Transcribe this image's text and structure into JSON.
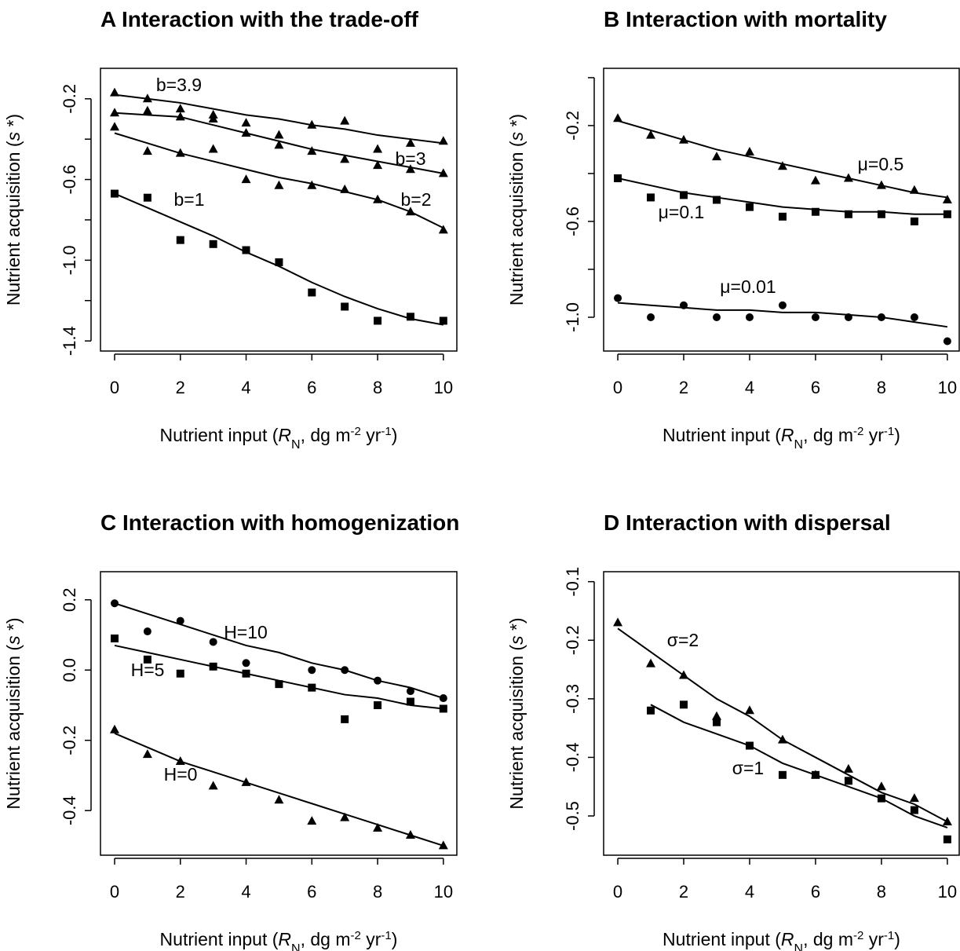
{
  "chart_data": [
    {
      "type": "scatter",
      "title": "A Interaction with the trade-off",
      "x": [
        0,
        1,
        2,
        3,
        4,
        5,
        6,
        7,
        8,
        9,
        10
      ],
      "xlim": [
        -0.43,
        10.41
      ],
      "xticks": [
        0,
        2,
        4,
        6,
        8,
        10
      ],
      "ylim": [
        -1.45,
        -0.049
      ],
      "yticks": [
        -1.4,
        {
          "value": -1,
          "label": "-1.0"
        },
        -0.6,
        -0.2
      ],
      "yminor_ticks": [
        -1.2,
        -0.8,
        -0.4
      ],
      "x_label": [
        "Nutrient input (",
        "R",
        "N",
        ", dg m",
        "-2",
        " yr",
        "-1",
        ")"
      ],
      "y_label": [
        "Nutrient acquisition (",
        "s",
        " *)"
      ],
      "series": [
        {
          "name": "b=3.9",
          "marker": "triangle",
          "color": "#000000",
          "values": [
            -0.17,
            -0.2,
            -0.25,
            -0.28,
            -0.32,
            -0.38,
            -0.33,
            -0.31,
            -0.45,
            -0.42,
            -0.41
          ],
          "fit": [
            -0.18,
            -0.2,
            -0.22,
            -0.25,
            -0.28,
            -0.3,
            -0.33,
            -0.35,
            -0.38,
            -0.4,
            -0.42
          ]
        },
        {
          "name": "b=3",
          "marker": "triangle",
          "color": "#000000",
          "values": [
            -0.27,
            -0.26,
            -0.29,
            -0.3,
            -0.37,
            -0.43,
            -0.46,
            -0.5,
            -0.53,
            -0.55,
            -0.57
          ],
          "fit": [
            -0.27,
            -0.28,
            -0.29,
            -0.33,
            -0.37,
            -0.41,
            -0.45,
            -0.48,
            -0.51,
            -0.54,
            -0.57
          ]
        },
        {
          "name": "b=2",
          "marker": "triangle",
          "color": "#000000",
          "values": [
            -0.34,
            -0.46,
            -0.47,
            -0.45,
            -0.6,
            -0.63,
            -0.63,
            -0.65,
            -0.7,
            -0.76,
            -0.85
          ],
          "fit": [
            -0.37,
            -0.42,
            -0.47,
            -0.51,
            -0.55,
            -0.59,
            -0.62,
            -0.66,
            -0.7,
            -0.76,
            -0.84
          ]
        },
        {
          "name": "b=1",
          "marker": "square",
          "color": "#000000",
          "values": [
            -0.67,
            -0.69,
            -0.9,
            -0.92,
            -0.95,
            -1.01,
            -1.16,
            -1.23,
            -1.3,
            -1.28,
            -1.3
          ],
          "fit": [
            -0.67,
            -0.74,
            -0.81,
            -0.88,
            -0.96,
            -1.03,
            -1.11,
            -1.18,
            -1.24,
            -1.29,
            -1.32
          ]
        }
      ]
    },
    {
      "type": "scatter",
      "title": "B Interaction with mortality",
      "x": [
        0,
        1,
        2,
        3,
        4,
        5,
        6,
        7,
        8,
        9,
        10
      ],
      "xlim": [
        -0.43,
        10.36
      ],
      "xticks": [
        0,
        2,
        4,
        6,
        8,
        10
      ],
      "ylim": [
        -1.141,
        0.039
      ],
      "yticks": [
        {
          "value": -1,
          "label": "-1.0"
        },
        -0.6,
        -0.2
      ],
      "yminor_ticks": [
        -0.8,
        -0.4,
        0
      ],
      "x_label": [
        "Nutrient input (",
        "R",
        "N",
        ", dg m",
        "-2",
        " yr",
        "-1",
        ")"
      ],
      "y_label": [
        "Nutrient acquisition (",
        "s",
        " *)"
      ],
      "series": [
        {
          "name": "μ=0.5",
          "marker": "triangle",
          "color": "#000000",
          "values": [
            -0.17,
            -0.24,
            -0.26,
            -0.33,
            -0.31,
            -0.37,
            -0.43,
            -0.42,
            -0.45,
            -0.47,
            -0.51
          ],
          "fit": [
            -0.18,
            -0.22,
            -0.26,
            -0.3,
            -0.33,
            -0.36,
            -0.39,
            -0.42,
            -0.45,
            -0.48,
            -0.5
          ]
        },
        {
          "name": "μ=0.1",
          "marker": "square",
          "color": "#000000",
          "values": [
            -0.42,
            -0.5,
            -0.49,
            -0.51,
            -0.54,
            -0.58,
            -0.56,
            -0.57,
            -0.57,
            -0.6,
            -0.57
          ],
          "fit": [
            -0.42,
            -0.45,
            -0.48,
            -0.5,
            -0.52,
            -0.54,
            -0.55,
            -0.56,
            -0.56,
            -0.57,
            -0.57
          ]
        },
        {
          "name": "μ=0.01",
          "marker": "circle",
          "color": "#000000",
          "values": [
            -0.92,
            -1,
            -0.95,
            -1,
            -1,
            -0.95,
            -1,
            -1,
            -1,
            -1,
            -1.1
          ],
          "fit": [
            -0.94,
            -0.95,
            -0.96,
            -0.97,
            -0.97,
            -0.98,
            -0.98,
            -0.99,
            -1,
            -1.02,
            -1.04
          ]
        }
      ]
    },
    {
      "type": "scatter",
      "title": "C Interaction with homogenization",
      "x": [
        0,
        1,
        2,
        3,
        4,
        5,
        6,
        7,
        8,
        9,
        10
      ],
      "xlim": [
        -0.43,
        10.41
      ],
      "xticks": [
        0,
        2,
        4,
        6,
        8,
        10
      ],
      "ylim": [
        -0.527,
        0.28
      ],
      "yticks": [
        -0.4,
        -0.2,
        {
          "value": 0,
          "label": "0.0"
        },
        0.2
      ],
      "yminor_ticks": [],
      "x_label": [
        "Nutrient input (",
        "R",
        "N",
        ", dg m",
        "-2",
        " yr",
        "-1",
        ")"
      ],
      "y_label": [
        "Nutrient acquisition (",
        "s",
        " *)"
      ],
      "series": [
        {
          "name": "H=10",
          "marker": "circle",
          "color": "#000000",
          "values": [
            0.19,
            0.11,
            0.14,
            0.08,
            0.02,
            null,
            0,
            0,
            -0.03,
            -0.06,
            -0.08
          ],
          "fit": [
            0.19,
            0.16,
            0.13,
            0.1,
            0.07,
            0.05,
            0.02,
            0,
            -0.03,
            -0.05,
            -0.08
          ]
        },
        {
          "name": "H=5",
          "marker": "square",
          "color": "#000000",
          "values": [
            0.09,
            0.03,
            -0.01,
            0.01,
            -0.01,
            -0.04,
            -0.05,
            -0.14,
            -0.1,
            -0.09,
            -0.11
          ],
          "fit": [
            0.07,
            0.05,
            0.03,
            0.01,
            -0.01,
            -0.03,
            -0.05,
            -0.07,
            -0.08,
            -0.1,
            -0.11
          ]
        },
        {
          "name": "H=0",
          "marker": "triangle",
          "color": "#000000",
          "values": [
            -0.17,
            -0.24,
            -0.26,
            -0.33,
            -0.32,
            -0.37,
            -0.43,
            -0.42,
            -0.45,
            -0.47,
            -0.5
          ],
          "fit": [
            -0.18,
            -0.22,
            -0.26,
            -0.29,
            -0.32,
            -0.35,
            -0.38,
            -0.41,
            -0.44,
            -0.47,
            -0.5
          ]
        }
      ]
    },
    {
      "type": "scatter",
      "title": "D Interaction with dispersal",
      "x": [
        0,
        1,
        2,
        3,
        4,
        5,
        6,
        7,
        8,
        9,
        10
      ],
      "xlim": [
        -0.43,
        10.36
      ],
      "xticks": [
        0,
        2,
        4,
        6,
        8,
        10
      ],
      "ylim": [
        -0.567,
        -0.083
      ],
      "yticks": [
        -0.5,
        -0.4,
        -0.3,
        -0.2,
        -0.1
      ],
      "yminor_ticks": [],
      "x_label": [
        "Nutrient input (",
        "R",
        "N",
        ", dg m",
        "-2",
        " yr",
        "-1",
        ")"
      ],
      "y_label": [
        "Nutrient acquisition (",
        "s",
        " *)"
      ],
      "series": [
        {
          "name": "σ=2",
          "marker": "triangle",
          "color": "#000000",
          "values": [
            -0.17,
            -0.24,
            -0.26,
            -0.33,
            -0.32,
            -0.37,
            -0.43,
            -0.42,
            -0.45,
            -0.47,
            -0.51
          ],
          "fit": [
            -0.18,
            -0.22,
            -0.26,
            -0.3,
            -0.33,
            -0.37,
            -0.4,
            -0.43,
            -0.46,
            -0.48,
            -0.51
          ]
        },
        {
          "name": "σ=1",
          "marker": "square",
          "color": "#000000",
          "values": [
            null,
            -0.32,
            -0.31,
            -0.34,
            -0.38,
            -0.43,
            -0.43,
            -0.44,
            -0.47,
            -0.49,
            -0.54
          ],
          "fit": [
            null,
            -0.31,
            -0.34,
            -0.36,
            -0.38,
            -0.41,
            -0.43,
            -0.45,
            -0.47,
            -0.5,
            -0.52
          ]
        }
      ]
    }
  ]
}
